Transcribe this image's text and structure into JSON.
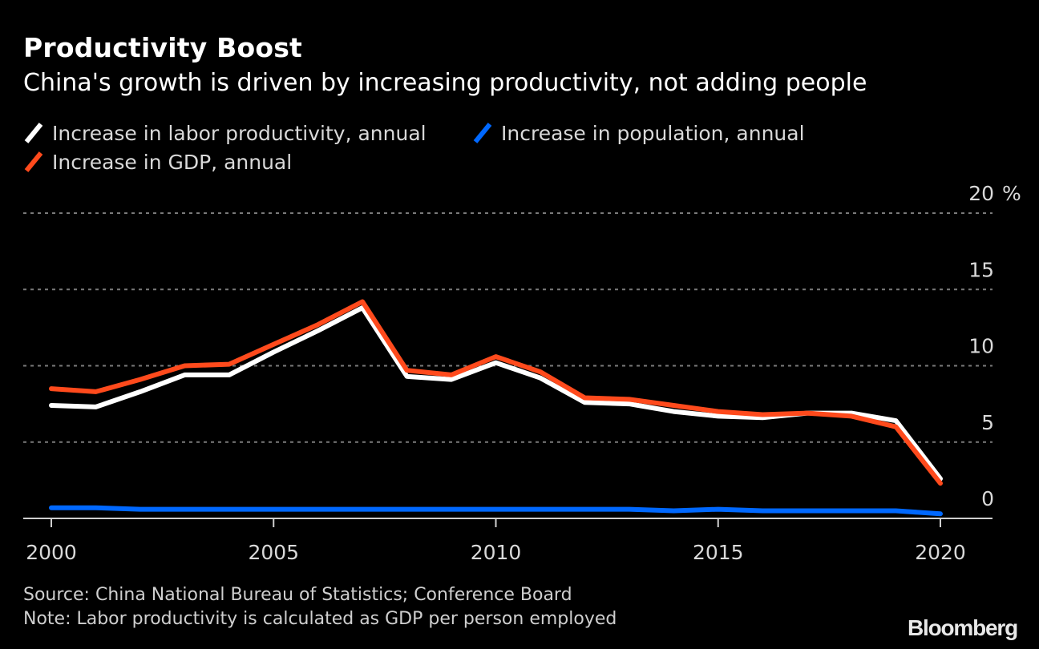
{
  "header": {
    "title": "Productivity Boost",
    "subtitle": "China's growth is driven by increasing productivity, not adding people"
  },
  "legend": [
    {
      "label": "Increase in labor productivity, annual",
      "color": "#ffffff"
    },
    {
      "label": "Increase in population, annual",
      "color": "#0068ff"
    },
    {
      "label": "Increase in GDP, annual",
      "color": "#ff4a1c"
    }
  ],
  "footer": {
    "source": "Source: China National Bureau of Statistics; Conference Board",
    "note": "Note: Labor productivity is calculated as GDP per person employed",
    "brand": "Bloomberg"
  },
  "chart_data": {
    "type": "line",
    "title": "Productivity Boost",
    "subtitle": "China's growth is driven by increasing productivity, not adding people",
    "xlabel": "",
    "ylabel": "%",
    "x": [
      2000,
      2001,
      2002,
      2003,
      2004,
      2005,
      2006,
      2007,
      2008,
      2009,
      2010,
      2011,
      2012,
      2013,
      2014,
      2015,
      2016,
      2017,
      2018,
      2019,
      2020
    ],
    "xlim": [
      2000,
      2020
    ],
    "ylim": [
      0,
      20
    ],
    "x_ticks": [
      "2000",
      "2005",
      "2010",
      "2015",
      "2020"
    ],
    "y_ticks": [
      "0",
      "5",
      "10",
      "15",
      "20"
    ],
    "y_unit": "%",
    "grid": true,
    "legend_position": "top-left",
    "series": [
      {
        "name": "Increase in labor productivity, annual",
        "color": "#ffffff",
        "values": [
          7.4,
          7.3,
          8.3,
          9.4,
          9.4,
          10.9,
          12.3,
          13.8,
          9.3,
          9.1,
          10.2,
          9.2,
          7.6,
          7.5,
          7.0,
          6.7,
          6.6,
          6.9,
          6.9,
          6.4,
          2.6
        ]
      },
      {
        "name": "Increase in population, annual",
        "color": "#0068ff",
        "values": [
          0.7,
          0.7,
          0.6,
          0.6,
          0.6,
          0.6,
          0.6,
          0.6,
          0.6,
          0.6,
          0.6,
          0.6,
          0.6,
          0.6,
          0.5,
          0.6,
          0.5,
          0.5,
          0.5,
          0.5,
          0.3
        ]
      },
      {
        "name": "Increase in GDP, annual",
        "color": "#ff4a1c",
        "values": [
          8.5,
          8.3,
          9.1,
          10.0,
          10.1,
          11.4,
          12.7,
          14.2,
          9.7,
          9.4,
          10.6,
          9.6,
          7.9,
          7.8,
          7.4,
          7.0,
          6.8,
          6.9,
          6.7,
          6.0,
          2.3
        ]
      }
    ]
  }
}
